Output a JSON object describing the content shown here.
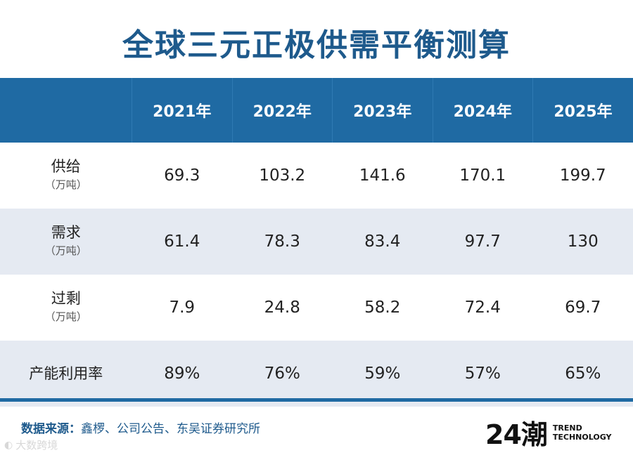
{
  "title": "全球三元正极供需平衡测算",
  "table": {
    "columns": [
      "2021年",
      "2022年",
      "2023年",
      "2024年",
      "2025年"
    ],
    "rows": [
      {
        "label": "供给",
        "unit": "（万吨）",
        "values": [
          "69.3",
          "103.2",
          "141.6",
          "170.1",
          "199.7"
        ]
      },
      {
        "label": "需求",
        "unit": "（万吨）",
        "values": [
          "61.4",
          "78.3",
          "83.4",
          "97.7",
          "130"
        ]
      },
      {
        "label": "过剩",
        "unit": "（万吨）",
        "values": [
          "7.9",
          "24.8",
          "58.2",
          "72.4",
          "69.7"
        ]
      },
      {
        "label": "产能利用率",
        "unit": "",
        "values": [
          "89%",
          "76%",
          "59%",
          "57%",
          "65%"
        ]
      }
    ]
  },
  "source": {
    "label": "数据来源：",
    "text": "鑫椤、公司公告、东吴证券研究所"
  },
  "logo": {
    "mark": "24潮",
    "line1": "TREND",
    "line2": "TECHNOLOGY"
  },
  "watermark": "大数跨境",
  "colors": {
    "header": "#1f6aa3",
    "title": "#1e5a8c",
    "stripe": "#e5eaf2"
  }
}
